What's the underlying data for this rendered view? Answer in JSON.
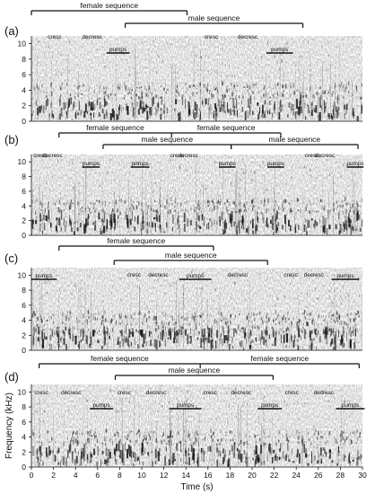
{
  "panels": [
    {
      "label": "(a)",
      "brackets": [
        {
          "text": "female sequence",
          "x0": 0.0,
          "x1": 14.1,
          "drop": "both",
          "row": 0
        },
        {
          "text": "male sequence",
          "x0": 8.5,
          "x1": 24.6,
          "drop": "both",
          "row": 1
        }
      ],
      "annotations": [
        {
          "text": "cresc",
          "x": 2.1,
          "kind": "text"
        },
        {
          "text": "decresc",
          "x": 5.5,
          "kind": "text"
        },
        {
          "text": "pumps",
          "x0": 6.8,
          "x1": 8.9,
          "kind": "bar"
        },
        {
          "text": "cresc",
          "x": 16.3,
          "kind": "text"
        },
        {
          "text": "decresc",
          "x": 19.6,
          "kind": "text"
        },
        {
          "text": "pumps",
          "x0": 21.3,
          "x1": 23.7,
          "kind": "bar"
        }
      ]
    },
    {
      "label": "(b)",
      "brackets": [
        {
          "text": "female sequence",
          "x0": 2.5,
          "x1": 12.7,
          "drop": "both",
          "row": 0
        },
        {
          "text": "female sequence",
          "x0": 12.7,
          "x1": 22.6,
          "drop": "right",
          "row": 0
        },
        {
          "text": "male sequence",
          "x0": 6.5,
          "x1": 18.1,
          "drop": "both",
          "row": 1
        },
        {
          "text": "male sequence",
          "x0": 18.1,
          "x1": 29.6,
          "drop": "both",
          "row": 1
        }
      ],
      "annotations": [
        {
          "text": "cresc",
          "x": 0.8,
          "kind": "text"
        },
        {
          "text": "decresc",
          "x": 1.9,
          "kind": "text"
        },
        {
          "text": "pumps",
          "x0": 4.6,
          "x1": 6.2,
          "kind": "bar"
        },
        {
          "text": "pumps",
          "x0": 9.0,
          "x1": 10.7,
          "kind": "bar"
        },
        {
          "text": "cresc",
          "x": 13.2,
          "kind": "text"
        },
        {
          "text": "decresc",
          "x": 14.2,
          "kind": "text"
        },
        {
          "text": "pumps",
          "x0": 17.0,
          "x1": 18.5,
          "kind": "bar"
        },
        {
          "text": "pumps",
          "x0": 21.4,
          "x1": 22.9,
          "kind": "bar"
        },
        {
          "text": "cresc",
          "x": 25.4,
          "kind": "text"
        },
        {
          "text": "decresc",
          "x": 26.6,
          "kind": "text"
        },
        {
          "text": "pumps",
          "x0": 28.6,
          "x1": 30.1,
          "kind": "bar"
        }
      ]
    },
    {
      "label": "(c)",
      "brackets": [
        {
          "text": "female sequence",
          "x0": 2.5,
          "x1": 16.5,
          "drop": "both",
          "row": 0
        },
        {
          "text": "male sequence",
          "x0": 7.5,
          "x1": 21.4,
          "drop": "both",
          "row": 1
        }
      ],
      "annotations": [
        {
          "text": "pumps",
          "x0": 0.0,
          "x1": 2.3,
          "kind": "bar"
        },
        {
          "text": "cresc",
          "x": 9.3,
          "kind": "text"
        },
        {
          "text": "decresc",
          "x": 11.5,
          "kind": "text"
        },
        {
          "text": "pumps",
          "x0": 13.4,
          "x1": 16.3,
          "kind": "bar"
        },
        {
          "text": "decresc",
          "x": 18.7,
          "kind": "text"
        },
        {
          "text": "cresc",
          "x": 23.5,
          "kind": "text"
        },
        {
          "text": "decresc",
          "x": 25.6,
          "kind": "text"
        },
        {
          "text": "pumps",
          "x0": 27.2,
          "x1": 29.7,
          "kind": "bar"
        }
      ]
    },
    {
      "label": "(d)",
      "brackets": [
        {
          "text": "female sequence",
          "x0": 0.7,
          "x1": 15.3,
          "drop": "both",
          "row": 0
        },
        {
          "text": "female sequence",
          "x0": 15.3,
          "x1": 29.7,
          "drop": "right",
          "row": 0
        },
        {
          "text": "male sequence",
          "x0": 7.6,
          "x1": 21.9,
          "drop": "both",
          "row": 1
        }
      ],
      "annotations": [
        {
          "text": "cresc",
          "x": 0.9,
          "kind": "text"
        },
        {
          "text": "decresc",
          "x": 3.6,
          "kind": "text"
        },
        {
          "text": "pumps",
          "x0": 5.3,
          "x1": 7.4,
          "kind": "bar"
        },
        {
          "text": "cresc",
          "x": 8.4,
          "kind": "text"
        },
        {
          "text": "decresc",
          "x": 11.3,
          "kind": "text"
        },
        {
          "text": "pumps",
          "x0": 12.5,
          "x1": 15.4,
          "kind": "bar"
        },
        {
          "text": "cresc",
          "x": 16.2,
          "kind": "text"
        },
        {
          "text": "decresc",
          "x": 19.0,
          "kind": "text"
        },
        {
          "text": "pumps",
          "x0": 20.5,
          "x1": 22.7,
          "kind": "bar"
        },
        {
          "text": "cresc",
          "x": 23.6,
          "kind": "text"
        },
        {
          "text": "decresc",
          "x": 26.5,
          "kind": "text"
        },
        {
          "text": "pumps",
          "x0": 27.6,
          "x1": 30.2,
          "kind": "bar"
        }
      ]
    }
  ],
  "y_axis": {
    "label": "Frequency (kHz)",
    "ticks": [
      0,
      2,
      4,
      6,
      8,
      10
    ],
    "range": [
      0,
      11
    ]
  },
  "x_axis": {
    "label": "Time (s)",
    "ticks": [
      0,
      2,
      4,
      6,
      8,
      10,
      12,
      14,
      16,
      18,
      20,
      22,
      24,
      26,
      28,
      30
    ],
    "range": [
      0,
      30
    ]
  },
  "colors": {
    "ink": "#111111",
    "background": "#ffffff"
  }
}
